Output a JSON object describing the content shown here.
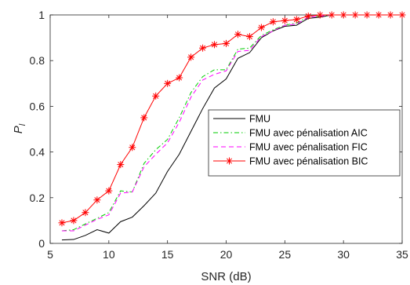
{
  "chart_data": {
    "type": "line",
    "xlabel": "SNR (dB)",
    "ylabel_main": "P",
    "ylabel_sub": "l",
    "xlim": [
      5,
      35
    ],
    "ylim": [
      0,
      1
    ],
    "xticks": [
      5,
      10,
      15,
      20,
      25,
      30,
      35
    ],
    "yticks": [
      0,
      0.2,
      0.4,
      0.6,
      0.8,
      1
    ],
    "ytick_labels": [
      "0",
      "0.2",
      "0.4",
      "0.6",
      "0.8",
      "1"
    ],
    "grid": false,
    "legend_position": "right",
    "x": [
      6,
      7,
      8,
      9,
      10,
      11,
      12,
      13,
      14,
      15,
      16,
      17,
      18,
      19,
      20,
      21,
      22,
      23,
      24,
      25,
      26,
      27,
      28,
      29,
      30,
      31,
      32,
      33,
      34,
      35
    ],
    "series": [
      {
        "name": "FMU",
        "color": "#000000",
        "style": "solid",
        "marker": "none",
        "values": [
          0.015,
          0.017,
          0.035,
          0.06,
          0.045,
          0.095,
          0.115,
          0.165,
          0.22,
          0.315,
          0.39,
          0.49,
          0.59,
          0.68,
          0.72,
          0.81,
          0.835,
          0.9,
          0.93,
          0.95,
          0.955,
          0.985,
          0.99,
          1,
          1,
          1,
          1,
          1,
          1,
          1
        ]
      },
      {
        "name": "FMU avec pénalisation AIC",
        "color": "#00cc00",
        "style": "dashdot",
        "marker": "none",
        "values": [
          0.055,
          0.06,
          0.085,
          0.11,
          0.135,
          0.23,
          0.225,
          0.35,
          0.41,
          0.455,
          0.55,
          0.66,
          0.73,
          0.76,
          0.76,
          0.85,
          0.855,
          0.91,
          0.935,
          0.955,
          0.965,
          0.99,
          0.995,
          1,
          1,
          1,
          1,
          1,
          1,
          1
        ]
      },
      {
        "name": "FMU avec pénalisation FIC",
        "color": "#ff00ff",
        "style": "dashed",
        "marker": "none",
        "values": [
          0.055,
          0.055,
          0.08,
          0.105,
          0.125,
          0.22,
          0.225,
          0.335,
          0.39,
          0.44,
          0.53,
          0.64,
          0.715,
          0.74,
          0.755,
          0.84,
          0.845,
          0.905,
          0.93,
          0.955,
          0.96,
          0.99,
          0.995,
          1,
          1,
          1,
          1,
          1,
          1,
          1
        ]
      },
      {
        "name": "FMU avec pénalisation BIC",
        "color": "#ff0000",
        "style": "solid",
        "marker": "asterisk",
        "values": [
          0.09,
          0.1,
          0.135,
          0.19,
          0.23,
          0.345,
          0.42,
          0.55,
          0.645,
          0.7,
          0.725,
          0.815,
          0.855,
          0.87,
          0.875,
          0.915,
          0.905,
          0.945,
          0.97,
          0.975,
          0.98,
          0.995,
          1,
          1,
          1,
          1,
          1,
          1,
          1,
          1
        ]
      }
    ]
  }
}
